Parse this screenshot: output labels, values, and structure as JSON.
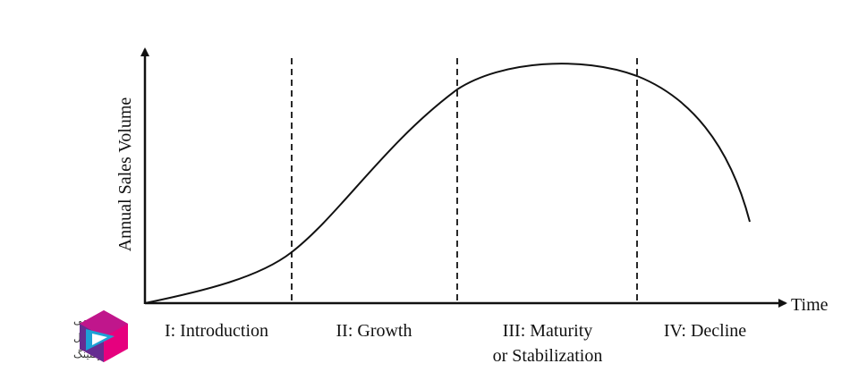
{
  "diagram": {
    "y_axis_label": "Annual Sales Volume",
    "x_axis_label": "Time",
    "stages": [
      {
        "line1": "I: Introduction",
        "line2": ""
      },
      {
        "line1": "II:  Growth",
        "line2": ""
      },
      {
        "line1": "III:  Maturity",
        "line2": "or Stabilization"
      },
      {
        "line1": "IV:  Decline",
        "line2": ""
      }
    ]
  },
  "logo": {
    "line1": "آکادمی",
    "line2": "دیجیتال",
    "line3": "مارکتینگ",
    "colors": {
      "magenta": "#e6007e",
      "purple": "#662d91",
      "blue": "#1da1d6"
    }
  },
  "colors": {
    "line": "#111111"
  }
}
